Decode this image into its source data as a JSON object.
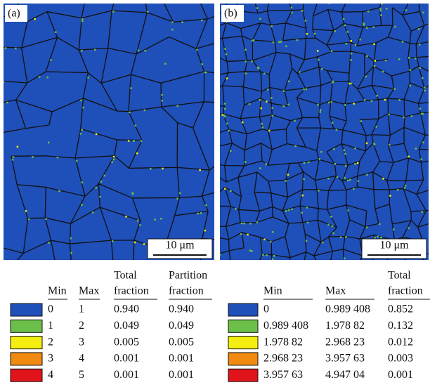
{
  "panels": [
    {
      "label": "(a)",
      "scale_bar": "10 μm"
    },
    {
      "label": "(b)",
      "scale_bar": "10 μm"
    }
  ],
  "tables": [
    {
      "header_top": [
        "Total",
        "Partition"
      ],
      "header_bottom": [
        "Min",
        "Max",
        "fraction",
        "fraction"
      ],
      "rows": [
        {
          "color": "#1f4fb8",
          "cells": [
            "0",
            "1",
            "0.940",
            "0.940"
          ]
        },
        {
          "color": "#6cc04a",
          "cells": [
            "1",
            "2",
            "0.049",
            "0.049"
          ]
        },
        {
          "color": "#f4ef10",
          "cells": [
            "2",
            "3",
            "0.005",
            "0.005"
          ]
        },
        {
          "color": "#f08a10",
          "cells": [
            "3",
            "4",
            "0.001",
            "0.001"
          ]
        },
        {
          "color": "#e0141a",
          "cells": [
            "4",
            "5",
            "0.001",
            "0.001"
          ]
        }
      ]
    },
    {
      "header_top": [
        "Total"
      ],
      "header_bottom": [
        "Min",
        "Max",
        "fraction"
      ],
      "rows": [
        {
          "color": "#1f4fb8",
          "cells": [
            "0",
            "0.989 408",
            "0.852"
          ]
        },
        {
          "color": "#6cc04a",
          "cells": [
            "0.989 408",
            "1.978 82",
            "0.132"
          ]
        },
        {
          "color": "#f4ef10",
          "cells": [
            "1.978 82",
            "2.968 23",
            "0.012"
          ]
        },
        {
          "color": "#f08a10",
          "cells": [
            "2.968 23",
            "3.957 63",
            "0.003"
          ]
        },
        {
          "color": "#e0141a",
          "cells": [
            "3.957 63",
            "4.947 04",
            "0.001"
          ]
        }
      ]
    }
  ]
}
